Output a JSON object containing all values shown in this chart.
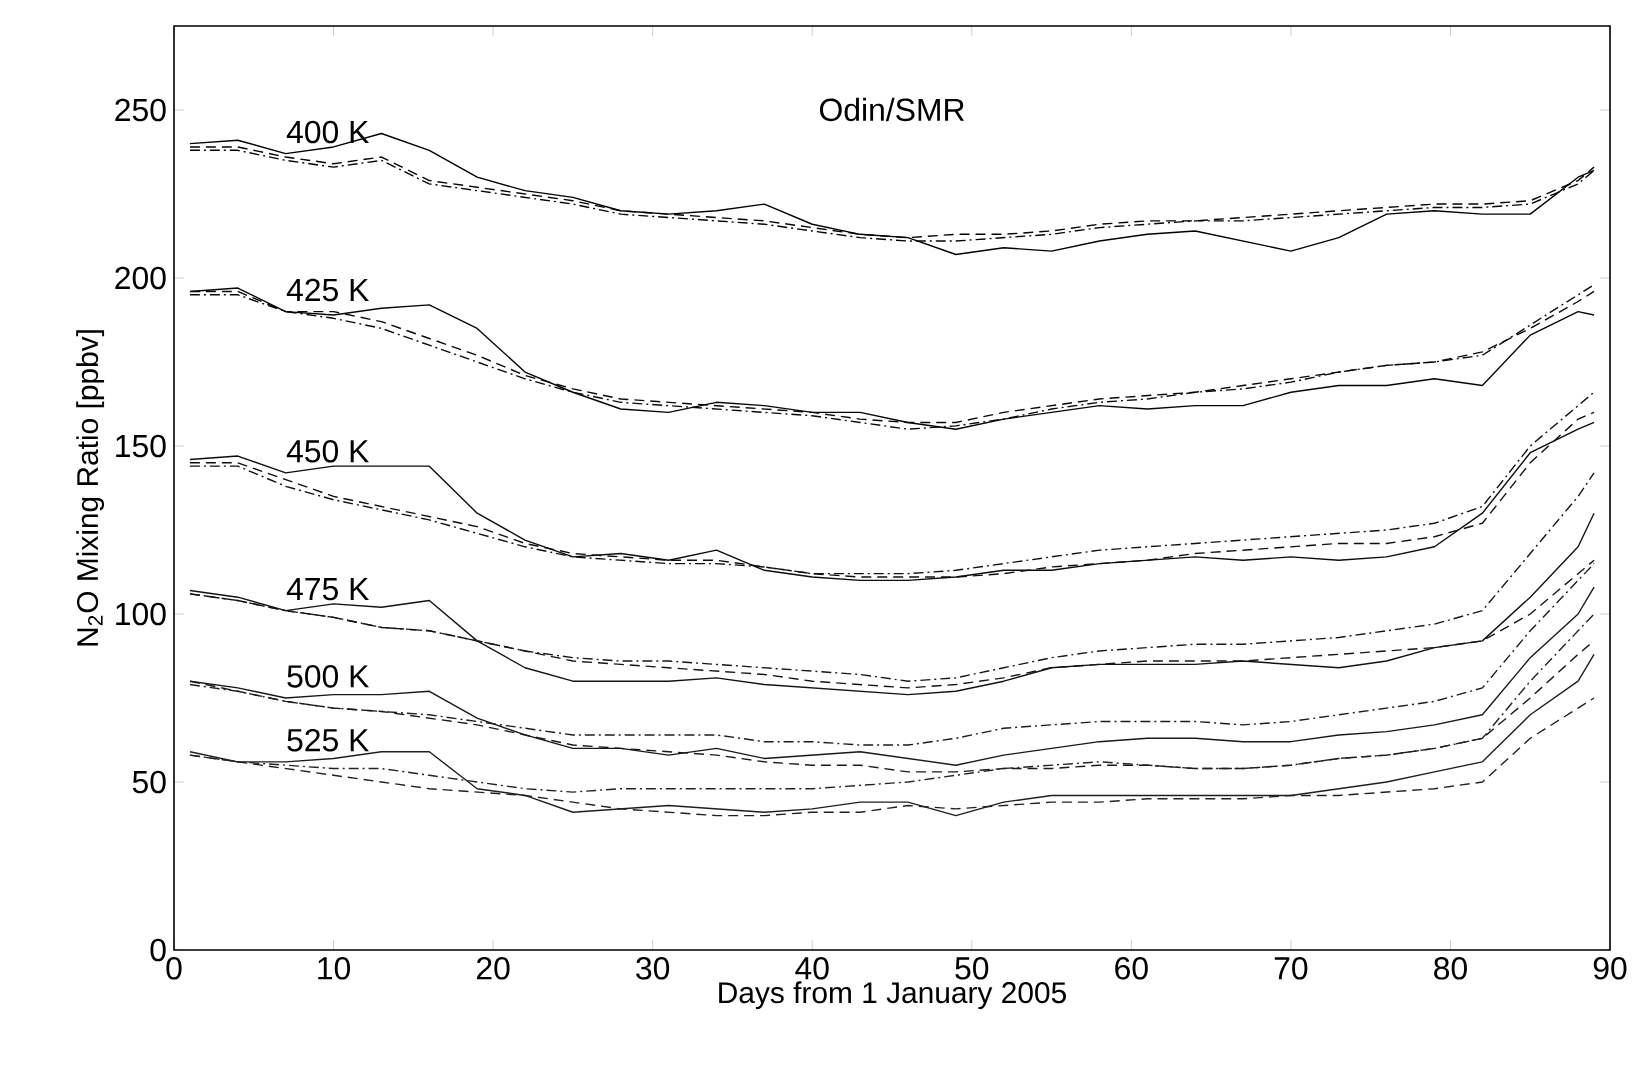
{
  "chart_data": {
    "type": "line",
    "xlabel": "Days from 1 January 2005",
    "ylabel": "N$_{2}$O Mixing Ratio [ppbv]",
    "xlim": [
      0,
      90
    ],
    "ylim": [
      0,
      275
    ],
    "xticks": [
      0,
      10,
      20,
      30,
      40,
      50,
      60,
      70,
      80,
      90
    ],
    "yticks": [
      0,
      50,
      100,
      150,
      200,
      250
    ],
    "grid": false,
    "marker": "none",
    "annotations": [
      "Odin/SMR",
      "400 K",
      "425 K",
      "450 K",
      "475 K",
      "500 K",
      "525 K"
    ],
    "x": [
      1,
      4,
      7,
      10,
      13,
      16,
      19,
      22,
      25,
      28,
      31,
      34,
      37,
      40,
      43,
      46,
      49,
      52,
      55,
      58,
      61,
      64,
      67,
      70,
      73,
      76,
      79,
      82,
      85,
      88,
      89
    ],
    "series": [
      {
        "color": "#000000",
        "line_style": "solid",
        "values": [
          240,
          241,
          237,
          239,
          243,
          238,
          230,
          226,
          224,
          220,
          219,
          220,
          222,
          216,
          213,
          212,
          207,
          209,
          208,
          211,
          213,
          214,
          211,
          208,
          212,
          219,
          220,
          219,
          219,
          230,
          232
        ]
      },
      {
        "color": "#020202",
        "line_style": "dashed",
        "values": [
          239,
          239,
          236,
          234,
          236,
          229,
          227,
          225,
          223,
          220,
          219,
          218,
          217,
          215,
          213,
          212,
          213,
          213,
          214,
          216,
          217,
          217,
          218,
          219,
          220,
          221,
          222,
          222,
          223,
          229,
          233
        ]
      },
      {
        "color": "#040404",
        "line_style": "dotted",
        "values": [
          238,
          238,
          235,
          233,
          235,
          228,
          226,
          224,
          222,
          219,
          218,
          217,
          216,
          214,
          212,
          211,
          211,
          212,
          213,
          215,
          216,
          217,
          217,
          218,
          219,
          220,
          221,
          221,
          222,
          228,
          232
        ]
      },
      {
        "color": "#060606",
        "line_style": "solid",
        "values": [
          196,
          197,
          190,
          189,
          191,
          192,
          185,
          172,
          166,
          161,
          160,
          163,
          162,
          160,
          160,
          157,
          155,
          158,
          160,
          162,
          161,
          162,
          162,
          166,
          168,
          168,
          170,
          168,
          183,
          190,
          189
        ]
      },
      {
        "color": "#080808",
        "line_style": "dashed",
        "values": [
          196,
          196,
          190,
          190,
          187,
          182,
          177,
          171,
          167,
          164,
          163,
          162,
          161,
          160,
          158,
          157,
          157,
          160,
          162,
          164,
          165,
          166,
          168,
          170,
          172,
          174,
          175,
          178,
          185,
          193,
          196
        ]
      },
      {
        "color": "#0a0a0a",
        "line_style": "dotted",
        "values": [
          195,
          195,
          190,
          188,
          185,
          180,
          175,
          170,
          166,
          163,
          162,
          161,
          160,
          159,
          157,
          155,
          156,
          158,
          161,
          163,
          164,
          166,
          167,
          169,
          172,
          174,
          175,
          177,
          186,
          195,
          198
        ]
      },
      {
        "color": "#0c0c0c",
        "line_style": "solid",
        "values": [
          146,
          147,
          142,
          144,
          144,
          144,
          130,
          122,
          117,
          118,
          116,
          119,
          113,
          111,
          110,
          110,
          111,
          113,
          113,
          115,
          116,
          117,
          116,
          117,
          116,
          117,
          120,
          130,
          148,
          155,
          157
        ]
      },
      {
        "color": "#0e0e0e",
        "line_style": "dashed",
        "values": [
          145,
          145,
          140,
          135,
          132,
          129,
          126,
          121,
          118,
          117,
          116,
          116,
          114,
          112,
          111,
          111,
          111,
          112,
          114,
          115,
          116,
          118,
          119,
          120,
          121,
          121,
          123,
          127,
          145,
          158,
          160
        ]
      },
      {
        "color": "#101010",
        "line_style": "dotted",
        "values": [
          144,
          144,
          138,
          134,
          131,
          128,
          124,
          120,
          117,
          116,
          115,
          115,
          114,
          112,
          112,
          112,
          113,
          115,
          117,
          119,
          120,
          121,
          122,
          123,
          124,
          125,
          127,
          132,
          150,
          162,
          166
        ]
      },
      {
        "color": "#121212",
        "line_style": "solid",
        "values": [
          107,
          105,
          101,
          103,
          102,
          104,
          92,
          84,
          80,
          80,
          80,
          81,
          79,
          78,
          77,
          76,
          77,
          80,
          84,
          85,
          85,
          85,
          86,
          85,
          84,
          86,
          90,
          92,
          105,
          120,
          130
        ]
      },
      {
        "color": "#141414",
        "line_style": "dashed",
        "values": [
          106,
          104,
          101,
          99,
          96,
          95,
          92,
          89,
          86,
          85,
          84,
          83,
          82,
          80,
          79,
          78,
          79,
          81,
          84,
          85,
          86,
          86,
          86,
          87,
          88,
          89,
          90,
          92,
          100,
          112,
          116
        ]
      },
      {
        "color": "#161616",
        "line_style": "dotted",
        "values": [
          106,
          104,
          101,
          99,
          96,
          95,
          92,
          89,
          87,
          86,
          86,
          85,
          84,
          83,
          82,
          80,
          81,
          84,
          87,
          89,
          90,
          91,
          91,
          92,
          93,
          95,
          97,
          101,
          118,
          135,
          142
        ]
      },
      {
        "color": "#181818",
        "line_style": "solid",
        "values": [
          80,
          78,
          75,
          76,
          76,
          77,
          69,
          64,
          60,
          60,
          58,
          60,
          57,
          58,
          59,
          57,
          55,
          58,
          60,
          62,
          63,
          63,
          62,
          62,
          64,
          65,
          67,
          70,
          87,
          100,
          108
        ]
      },
      {
        "color": "#1a1a1a",
        "line_style": "dashed",
        "values": [
          80,
          77,
          74,
          72,
          71,
          69,
          67,
          64,
          61,
          60,
          59,
          58,
          56,
          55,
          55,
          53,
          53,
          54,
          54,
          55,
          55,
          54,
          54,
          55,
          57,
          58,
          60,
          63,
          75,
          88,
          92
        ]
      },
      {
        "color": "#1c1c1c",
        "line_style": "dotted",
        "values": [
          79,
          77,
          74,
          72,
          71,
          70,
          68,
          66,
          64,
          64,
          64,
          64,
          62,
          62,
          61,
          61,
          63,
          66,
          67,
          68,
          68,
          68,
          67,
          68,
          70,
          72,
          74,
          78,
          95,
          110,
          115
        ]
      },
      {
        "color": "#1e1e1e",
        "line_style": "solid",
        "values": [
          59,
          56,
          56,
          57,
          59,
          59,
          48,
          46,
          41,
          42,
          43,
          42,
          41,
          42,
          44,
          44,
          40,
          44,
          46,
          46,
          46,
          46,
          46,
          46,
          48,
          50,
          53,
          56,
          70,
          80,
          88
        ]
      },
      {
        "color": "#202020",
        "line_style": "dashed",
        "values": [
          58,
          56,
          54,
          52,
          50,
          48,
          47,
          46,
          44,
          42,
          41,
          40,
          40,
          41,
          41,
          43,
          42,
          43,
          44,
          44,
          45,
          45,
          45,
          46,
          46,
          47,
          48,
          50,
          63,
          72,
          75
        ]
      },
      {
        "color": "#222222",
        "line_style": "dotted",
        "values": [
          58,
          56,
          55,
          54,
          54,
          52,
          50,
          48,
          47,
          48,
          48,
          48,
          48,
          48,
          49,
          50,
          52,
          54,
          55,
          56,
          55,
          54,
          54,
          55,
          57,
          58,
          60,
          63,
          80,
          95,
          100
        ]
      }
    ]
  }
}
